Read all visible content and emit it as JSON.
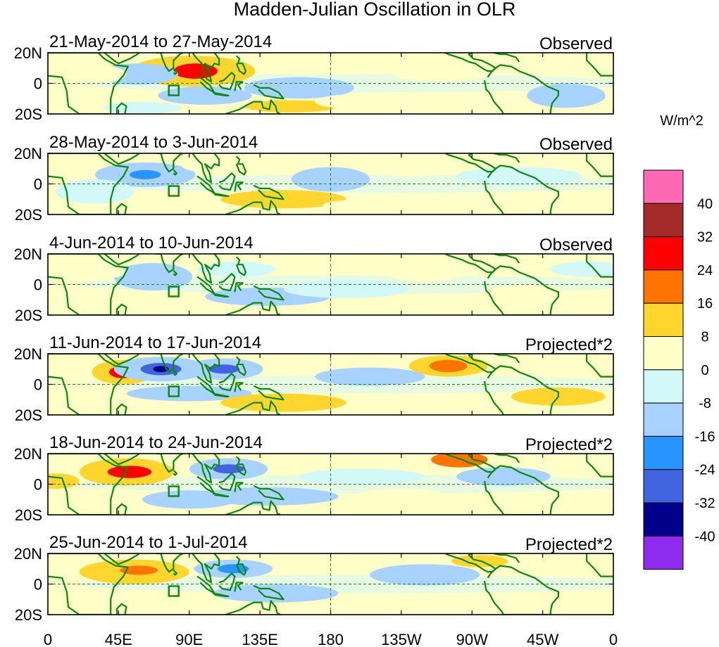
{
  "title": "Madden-Julian Oscillation in OLR",
  "panels": [
    {
      "period": "21-May-2014 to 27-May-2014",
      "status": "Observed",
      "blobs": [
        {
          "lon": 92,
          "lat": 8,
          "rx": 40,
          "ry": 10,
          "v": 14
        },
        {
          "lon": 94,
          "lat": 8,
          "rx": 14,
          "ry": 5,
          "v": 26
        },
        {
          "lon": 57,
          "lat": 6,
          "rx": 26,
          "ry": 7,
          "v": -12
        },
        {
          "lon": 160,
          "lat": -3,
          "rx": 35,
          "ry": 7,
          "v": -9
        },
        {
          "lon": 100,
          "lat": -8,
          "rx": 30,
          "ry": 6,
          "v": -8
        },
        {
          "lon": 155,
          "lat": -15,
          "rx": 30,
          "ry": 4,
          "v": 10
        },
        {
          "lon": 250,
          "lat": 6,
          "rx": 30,
          "ry": 5,
          "v": 6
        },
        {
          "lon": 60,
          "lat": -16,
          "rx": 25,
          "ry": 4,
          "v": -7
        },
        {
          "lon": 330,
          "lat": -8,
          "rx": 25,
          "ry": 8,
          "v": -9
        },
        {
          "lon": 30,
          "lat": 6,
          "rx": 20,
          "ry": 6,
          "v": 6
        },
        {
          "lon": 200,
          "lat": -12,
          "rx": 30,
          "ry": 5,
          "v": 5
        }
      ]
    },
    {
      "period": "28-May-2014 to 3-Jun-2014",
      "status": "Observed",
      "blobs": [
        {
          "lon": 62,
          "lat": 6,
          "rx": 32,
          "ry": 8,
          "v": -13
        },
        {
          "lon": 62,
          "lat": 6,
          "rx": 10,
          "ry": 3,
          "v": -20
        },
        {
          "lon": 150,
          "lat": -10,
          "rx": 40,
          "ry": 6,
          "v": 10
        },
        {
          "lon": 180,
          "lat": 3,
          "rx": 25,
          "ry": 8,
          "v": -10
        },
        {
          "lon": 230,
          "lat": 10,
          "rx": 30,
          "ry": 5,
          "v": 6
        },
        {
          "lon": 300,
          "lat": 5,
          "rx": 40,
          "ry": 6,
          "v": -7
        },
        {
          "lon": 110,
          "lat": 12,
          "rx": 25,
          "ry": 5,
          "v": 6
        },
        {
          "lon": 30,
          "lat": -5,
          "rx": 25,
          "ry": 8,
          "v": -7
        },
        {
          "lon": 205,
          "lat": -14,
          "rx": 30,
          "ry": 4,
          "v": 5
        }
      ]
    },
    {
      "period": "4-Jun-2014 to 10-Jun-2014",
      "status": "Observed",
      "blobs": [
        {
          "lon": 67,
          "lat": 5,
          "rx": 25,
          "ry": 9,
          "v": -13
        },
        {
          "lon": 140,
          "lat": -8,
          "rx": 40,
          "ry": 6,
          "v": -8
        },
        {
          "lon": 190,
          "lat": -3,
          "rx": 40,
          "ry": 6,
          "v": -7
        },
        {
          "lon": 240,
          "lat": 8,
          "rx": 25,
          "ry": 6,
          "v": 7
        },
        {
          "lon": 305,
          "lat": -8,
          "rx": 30,
          "ry": 8,
          "v": 7
        },
        {
          "lon": 120,
          "lat": 10,
          "rx": 25,
          "ry": 5,
          "v": -6
        },
        {
          "lon": 35,
          "lat": 8,
          "rx": 15,
          "ry": 4,
          "v": 6
        },
        {
          "lon": 345,
          "lat": 10,
          "rx": 25,
          "ry": 5,
          "v": -6
        }
      ]
    },
    {
      "period": "11-Jun-2014 to 17-Jun-2014",
      "status": "Projected*2",
      "blobs": [
        {
          "lon": 48,
          "lat": 8,
          "rx": 20,
          "ry": 8,
          "v": 14
        },
        {
          "lon": 48,
          "lat": 8,
          "rx": 9,
          "ry": 4,
          "v": 30
        },
        {
          "lon": 72,
          "lat": 10,
          "rx": 30,
          "ry": 8,
          "v": -14
        },
        {
          "lon": 72,
          "lat": 10,
          "rx": 13,
          "ry": 4,
          "v": -28
        },
        {
          "lon": 72,
          "lat": 10,
          "rx": 5,
          "ry": 2,
          "v": -36
        },
        {
          "lon": 112,
          "lat": 10,
          "rx": 25,
          "ry": 7,
          "v": -13
        },
        {
          "lon": 112,
          "lat": 10,
          "rx": 10,
          "ry": 3,
          "v": -25
        },
        {
          "lon": 90,
          "lat": -6,
          "rx": 40,
          "ry": 5,
          "v": -10
        },
        {
          "lon": 150,
          "lat": -12,
          "rx": 40,
          "ry": 6,
          "v": 10
        },
        {
          "lon": 255,
          "lat": 12,
          "rx": 25,
          "ry": 7,
          "v": 14
        },
        {
          "lon": 255,
          "lat": 12,
          "rx": 12,
          "ry": 4,
          "v": 22
        },
        {
          "lon": 205,
          "lat": 5,
          "rx": 35,
          "ry": 6,
          "v": -9
        },
        {
          "lon": 325,
          "lat": -8,
          "rx": 30,
          "ry": 6,
          "v": 8
        },
        {
          "lon": 30,
          "lat": -5,
          "rx": 20,
          "ry": 6,
          "v": 7
        }
      ]
    },
    {
      "period": "18-Jun-2014 to 24-Jun-2014",
      "status": "Projected*2",
      "blobs": [
        {
          "lon": 50,
          "lat": 8,
          "rx": 30,
          "ry": 9,
          "v": 12
        },
        {
          "lon": 52,
          "lat": 8,
          "rx": 14,
          "ry": 4,
          "v": 28
        },
        {
          "lon": 115,
          "lat": 10,
          "rx": 25,
          "ry": 7,
          "v": -14
        },
        {
          "lon": 115,
          "lat": 10,
          "rx": 10,
          "ry": 3,
          "v": -25
        },
        {
          "lon": 140,
          "lat": -8,
          "rx": 45,
          "ry": 6,
          "v": -9
        },
        {
          "lon": 90,
          "lat": -10,
          "rx": 30,
          "ry": 6,
          "v": -8
        },
        {
          "lon": 262,
          "lat": 16,
          "rx": 18,
          "ry": 5,
          "v": 18
        },
        {
          "lon": 290,
          "lat": 5,
          "rx": 30,
          "ry": 6,
          "v": -8
        },
        {
          "lon": 5,
          "lat": 2,
          "rx": 15,
          "ry": 5,
          "v": 10
        },
        {
          "lon": 200,
          "lat": 5,
          "rx": 40,
          "ry": 5,
          "v": -6
        },
        {
          "lon": 225,
          "lat": -8,
          "rx": 30,
          "ry": 5,
          "v": 6
        }
      ]
    },
    {
      "period": "25-Jun-2014 to 1-Jul-2014",
      "status": "Projected*2",
      "blobs": [
        {
          "lon": 55,
          "lat": 8,
          "rx": 35,
          "ry": 8,
          "v": 10
        },
        {
          "lon": 58,
          "lat": 9,
          "rx": 12,
          "ry": 3,
          "v": 18
        },
        {
          "lon": 118,
          "lat": 10,
          "rx": 25,
          "ry": 6,
          "v": -12
        },
        {
          "lon": 118,
          "lat": 10,
          "rx": 10,
          "ry": 3,
          "v": -20
        },
        {
          "lon": 145,
          "lat": -6,
          "rx": 40,
          "ry": 6,
          "v": -8
        },
        {
          "lon": 240,
          "lat": 6,
          "rx": 35,
          "ry": 7,
          "v": -8
        },
        {
          "lon": 275,
          "lat": 15,
          "rx": 18,
          "ry": 4,
          "v": 10
        },
        {
          "lon": 30,
          "lat": -8,
          "rx": 25,
          "ry": 6,
          "v": 7
        },
        {
          "lon": 310,
          "lat": -10,
          "rx": 30,
          "ry": 5,
          "v": 6
        }
      ]
    }
  ],
  "lat_labels": [
    "20N",
    "0",
    "20S"
  ],
  "lon_labels": [
    "0",
    "45E",
    "90E",
    "135E",
    "180",
    "135W",
    "90W",
    "45W",
    "0"
  ],
  "colorbar": {
    "units": "W/m^2",
    "labels": [
      "40",
      "32",
      "24",
      "16",
      "8",
      "0",
      "-8",
      "-16",
      "-24",
      "-32",
      "-40"
    ],
    "colors": [
      "#ff69b4",
      "#a52a2a",
      "#ff0000",
      "#ff7400",
      "#ffd52e",
      "#ffffc8",
      "#d2f8f8",
      "#a8d2ff",
      "#2894ff",
      "#4065de",
      "#00008b",
      "#8e2bee"
    ]
  },
  "colors": {
    "background_field": "#ffffc8",
    "coast": "#0a8a0a",
    "dashed": "#1f8a1f"
  }
}
